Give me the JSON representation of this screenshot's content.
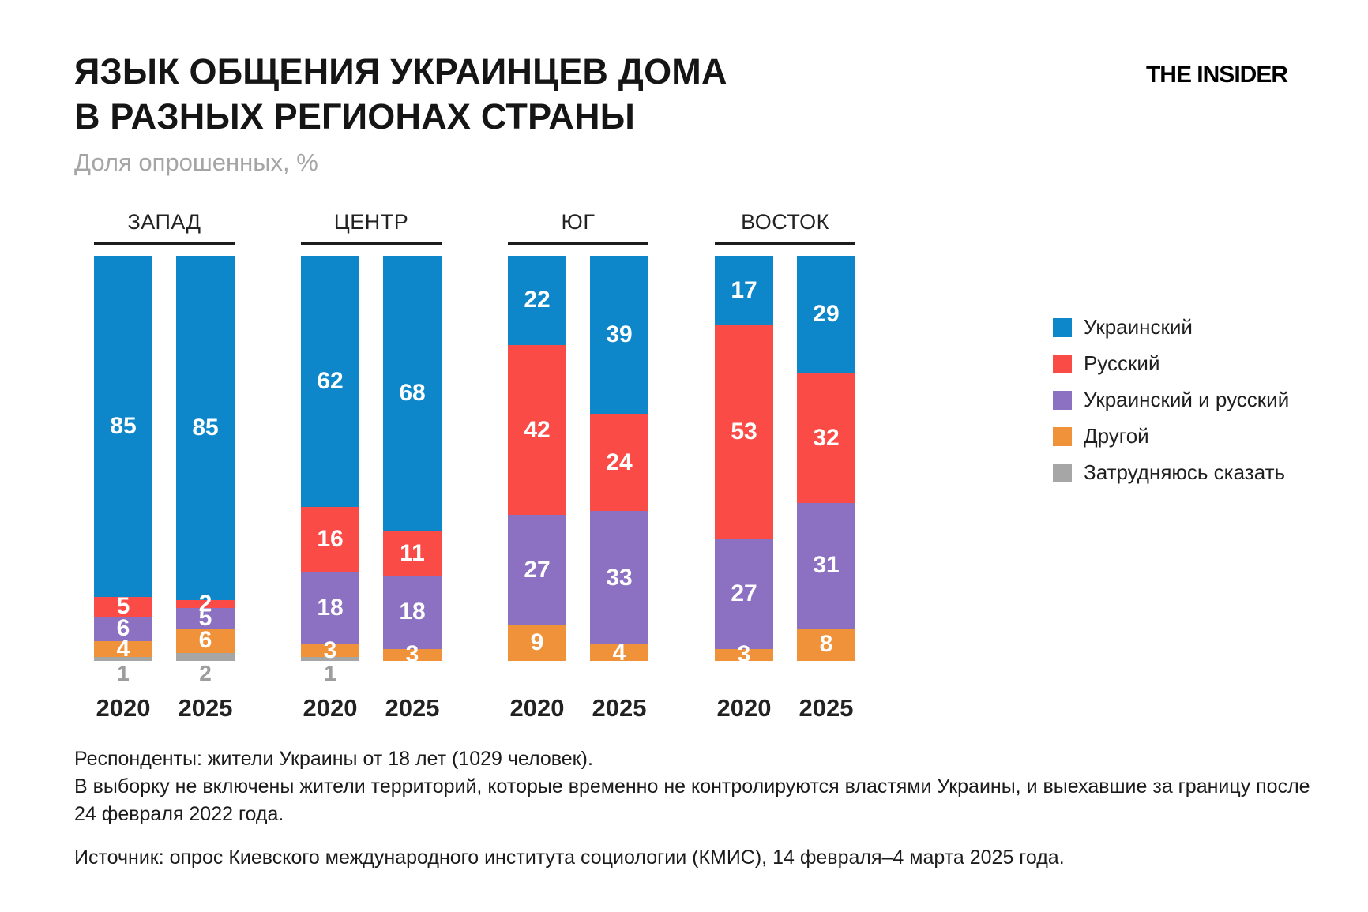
{
  "header": {
    "title_line1": "ЯЗЫК ОБЩЕНИЯ УКРАИНЦЕВ ДОМА",
    "title_line2": "В РАЗНЫХ РЕГИОНАХ СТРАНЫ",
    "subtitle": "Доля опрошенных, %",
    "logo": "THE INSIDER"
  },
  "chart_data": {
    "type": "bar",
    "stacked": true,
    "value_unit": "%",
    "value_range": [
      0,
      100
    ],
    "legend_position": "right",
    "series": [
      {
        "key": "ukrainian",
        "label": "Украинский",
        "color": "#0d87c9"
      },
      {
        "key": "russian",
        "label": "Русский",
        "color": "#fb4b47"
      },
      {
        "key": "both",
        "label": "Украинский и русский",
        "color": "#8c70c2"
      },
      {
        "key": "other",
        "label": "Другой",
        "color": "#f0923a"
      },
      {
        "key": "undecided",
        "label": "Затрудняюсь сказать",
        "color": "#a6a6a6"
      }
    ],
    "regions": [
      {
        "label": "ЗАПАД",
        "bars": [
          {
            "year": "2020",
            "values": [
              85,
              5,
              6,
              4,
              1
            ]
          },
          {
            "year": "2025",
            "values": [
              85,
              2,
              5,
              6,
              2
            ]
          }
        ]
      },
      {
        "label": "ЦЕНТР",
        "bars": [
          {
            "year": "2020",
            "values": [
              62,
              16,
              18,
              3,
              1
            ]
          },
          {
            "year": "2025",
            "values": [
              68,
              11,
              18,
              3,
              0
            ]
          }
        ]
      },
      {
        "label": "ЮГ",
        "bars": [
          {
            "year": "2020",
            "values": [
              22,
              42,
              27,
              9,
              0
            ]
          },
          {
            "year": "2025",
            "values": [
              39,
              24,
              33,
              4,
              0
            ]
          }
        ]
      },
      {
        "label": "ВОСТОК",
        "bars": [
          {
            "year": "2020",
            "values": [
              17,
              53,
              27,
              3,
              0
            ]
          },
          {
            "year": "2025",
            "values": [
              29,
              32,
              31,
              8,
              0
            ]
          }
        ]
      }
    ]
  },
  "footnotes": {
    "respondents": "Респонденты: жители Украины от 18 лет (1029 человек).",
    "sample_note": "В выборку не включены жители территорий, которые временно не контролируются властями Украины, и выехавшие за границу после 24 февраля 2022 года.",
    "source": "Источник: опрос Киевского международного института социологии (КМИС), 14 февраля–4 марта 2025 года."
  }
}
